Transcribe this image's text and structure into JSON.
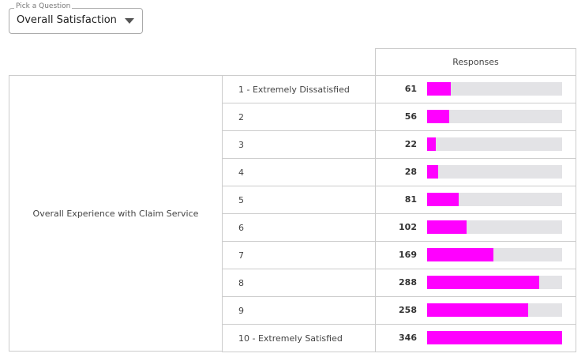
{
  "dropdown": {
    "label": "Pick a Question",
    "value": "Overall Satisfaction"
  },
  "table": {
    "header": "Responses",
    "group": "Overall Experience with Claim Service",
    "rows": [
      {
        "label": "1 - Extremely Dissatisfied",
        "value": 61
      },
      {
        "label": "2",
        "value": 56
      },
      {
        "label": "3",
        "value": 22
      },
      {
        "label": "4",
        "value": 28
      },
      {
        "label": "5",
        "value": 81
      },
      {
        "label": "6",
        "value": 102
      },
      {
        "label": "7",
        "value": 169
      },
      {
        "label": "8",
        "value": 288
      },
      {
        "label": "9",
        "value": 258
      },
      {
        "label": "10 - Extremely Satisfied",
        "value": 346
      }
    ]
  },
  "bar_color": "#ff00ff"
}
